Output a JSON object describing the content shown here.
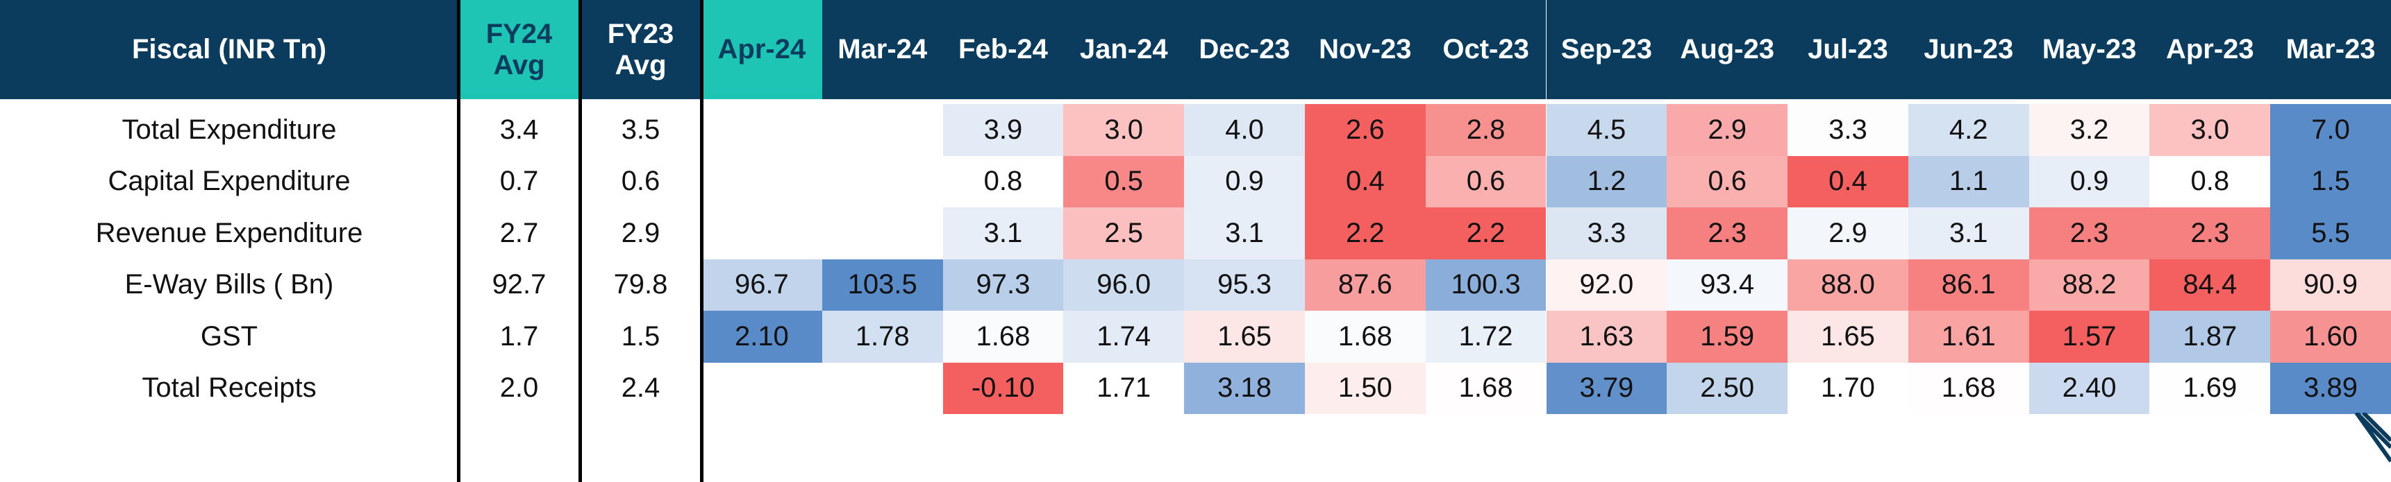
{
  "header": {
    "row_label": "Fiscal  (INR Tn)",
    "avg_columns": [
      "FY24\nAvg",
      "FY23\nAvg"
    ],
    "months": [
      "Apr-24",
      "Mar-24",
      "Feb-24",
      "Jan-24",
      "Dec-23",
      "Nov-23",
      "Oct-23",
      "Sep-23",
      "Aug-23",
      "Jul-23",
      "Jun-23",
      "May-23",
      "Apr-23",
      "Mar-23"
    ]
  },
  "colors": {
    "header_bg": "#0b3c5d",
    "header_highlight_bg": "#1ec4b4",
    "header_highlight_text": "#0b3c5d",
    "high_value": "#5a8bc9",
    "mid_value": "#ffffff",
    "low_value": "#f4605f"
  },
  "chart_data": {
    "type": "table",
    "title": "Fiscal  (INR Tn)",
    "highlighted_columns": [
      "FY24\nAvg",
      "Apr-24"
    ],
    "rows": [
      {
        "label": "Total Expenditure",
        "fy24_avg": "3.4",
        "fy23_avg": "3.5",
        "values": [
          "",
          "",
          "3.9",
          "3.0",
          "4.0",
          "2.6",
          "2.8",
          "4.5",
          "2.9",
          "3.3",
          "4.2",
          "3.2",
          "3.0",
          "7.0"
        ]
      },
      {
        "label": "Capital Expenditure",
        "fy24_avg": "0.7",
        "fy23_avg": "0.6",
        "values": [
          "",
          "",
          "0.8",
          "0.5",
          "0.9",
          "0.4",
          "0.6",
          "1.2",
          "0.6",
          "0.4",
          "1.1",
          "0.9",
          "0.8",
          "1.5"
        ]
      },
      {
        "label": "Revenue Expenditure",
        "fy24_avg": "2.7",
        "fy23_avg": "2.9",
        "values": [
          "",
          "",
          "3.1",
          "2.5",
          "3.1",
          "2.2",
          "2.2",
          "3.3",
          "2.3",
          "2.9",
          "3.1",
          "2.3",
          "2.3",
          "5.5"
        ]
      },
      {
        "label": "E-Way Bills ( Bn)",
        "fy24_avg": "92.7",
        "fy23_avg": "79.8",
        "values": [
          "96.7",
          "103.5",
          "97.3",
          "96.0",
          "95.3",
          "87.6",
          "100.3",
          "92.0",
          "93.4",
          "88.0",
          "86.1",
          "88.2",
          "84.4",
          "90.9"
        ]
      },
      {
        "label": "GST",
        "fy24_avg": "1.7",
        "fy23_avg": "1.5",
        "values": [
          "2.10",
          "1.78",
          "1.68",
          "1.74",
          "1.65",
          "1.68",
          "1.72",
          "1.63",
          "1.59",
          "1.65",
          "1.61",
          "1.57",
          "1.87",
          "1.60"
        ]
      },
      {
        "label": "Total Receipts",
        "fy24_avg": "2.0",
        "fy23_avg": "2.4",
        "values": [
          "",
          "",
          "-0.10",
          "1.71",
          "3.18",
          "1.50",
          "1.68",
          "3.79",
          "2.50",
          "1.70",
          "1.68",
          "2.40",
          "1.69",
          "3.89"
        ]
      }
    ]
  }
}
